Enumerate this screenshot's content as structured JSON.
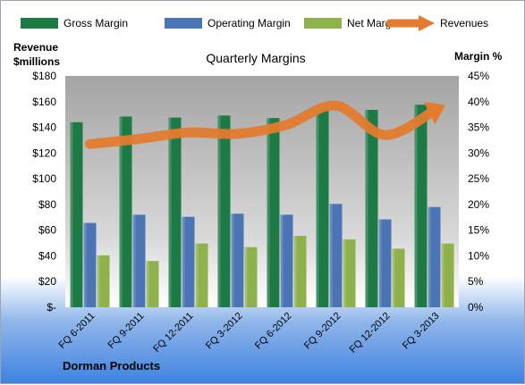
{
  "chart_data": {
    "type": "bar",
    "title": "Quarterly Margins",
    "company": "Dorman Products",
    "y_left_label": [
      "Revenue",
      "$millions"
    ],
    "y_right_label": "Margin %",
    "ylim_left": [
      0,
      180
    ],
    "ylim_right": [
      0,
      45
    ],
    "left_ticks": [
      "$-",
      "$20",
      "$40",
      "$60",
      "$80",
      "$100",
      "$120",
      "$140",
      "$160",
      "$180"
    ],
    "right_ticks": [
      "0%",
      "5%",
      "10%",
      "15%",
      "20%",
      "25%",
      "30%",
      "35%",
      "40%",
      "45%"
    ],
    "categories": [
      "FQ 6-2011",
      "FQ 9-2011",
      "FQ 12-2011",
      "FQ 3-2012",
      "FQ 6-2012",
      "FQ 9-2012",
      "FQ 12-2012",
      "FQ 3-2013"
    ],
    "series": [
      {
        "name": "Gross Margin",
        "axis": "right",
        "type": "bar",
        "color": "#1d7a45",
        "values": [
          36.0,
          37.1,
          36.9,
          37.3,
          36.8,
          38.5,
          38.4,
          39.4
        ]
      },
      {
        "name": "Operating Margin",
        "axis": "right",
        "type": "bar",
        "color": "#4a74b4",
        "values": [
          16.4,
          18.0,
          17.6,
          18.2,
          18.0,
          20.1,
          17.1,
          19.5
        ]
      },
      {
        "name": "Net Margin",
        "axis": "right",
        "type": "bar",
        "color": "#8fb14b",
        "values": [
          10.1,
          9.0,
          12.4,
          11.7,
          13.9,
          13.2,
          11.4,
          12.4
        ]
      },
      {
        "name": "Revenues",
        "axis": "left",
        "type": "line",
        "color": "#e47b2e",
        "values": [
          127,
          131,
          136,
          135,
          142,
          157,
          134,
          153
        ]
      }
    ],
    "legend": {
      "placement": "top"
    },
    "grid": false
  }
}
